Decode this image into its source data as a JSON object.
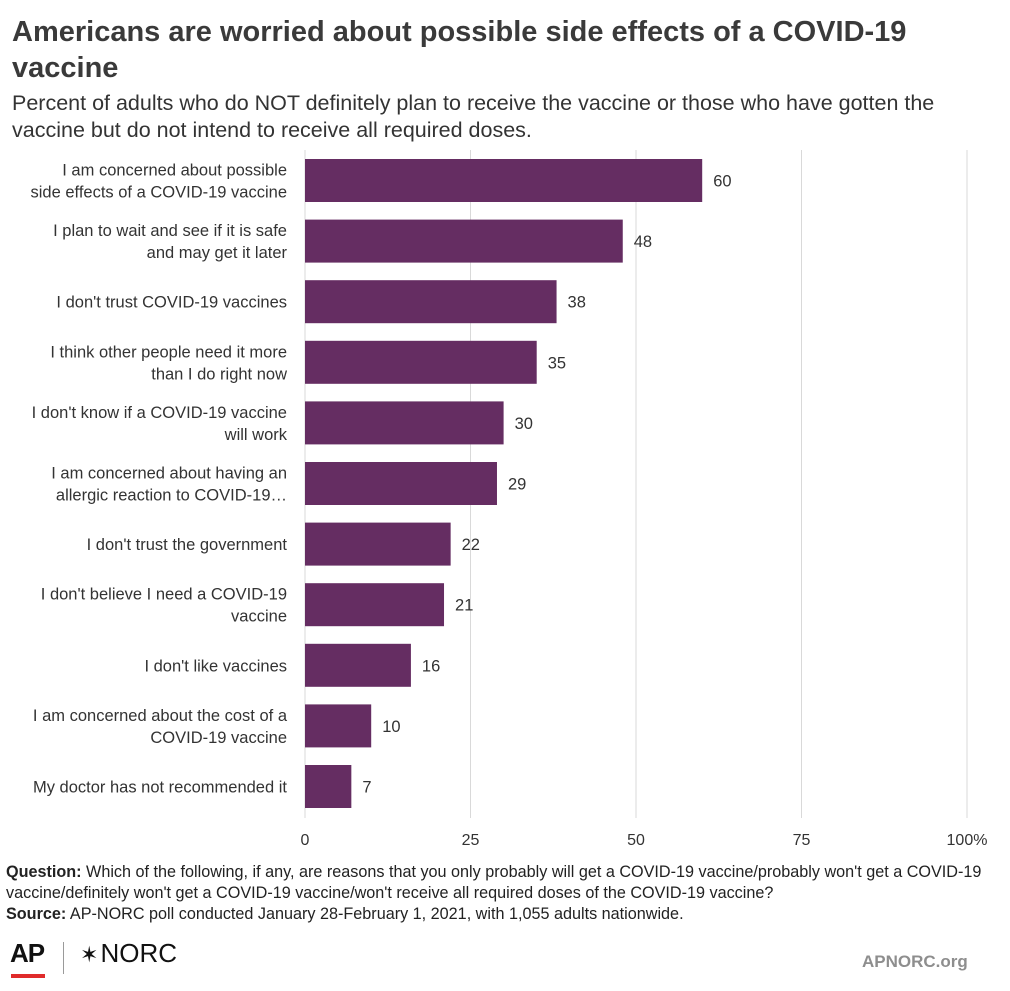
{
  "title": "Americans are worried about possible side effects of a COVID-19 vaccine",
  "subtitle": "Percent of adults who do NOT definitely plan to receive the vaccine or those who have gotten the vaccine but do not intend to receive all required doses.",
  "colors": {
    "bar": "#652d62",
    "grid": "#d9d9d9",
    "text": "#333333",
    "ap_red": "#e02b2b"
  },
  "chart_data": {
    "type": "bar",
    "orientation": "horizontal",
    "categories": [
      [
        "I am concerned about possible",
        "side effects of a COVID-19 vaccine"
      ],
      [
        "I plan to wait and see if it is safe",
        "and may get it later"
      ],
      [
        "I don't trust COVID-19 vaccines"
      ],
      [
        "I think other people need it more",
        "than I do right now"
      ],
      [
        "I don't know if a COVID-19 vaccine",
        "will work"
      ],
      [
        "I am concerned about having an",
        "allergic reaction to COVID-19…"
      ],
      [
        "I don't trust the government"
      ],
      [
        "I don't believe I need a COVID-19",
        "vaccine"
      ],
      [
        "I don't like vaccines"
      ],
      [
        "I am concerned about the cost of a",
        "COVID-19 vaccine"
      ],
      [
        "My doctor has not recommended it"
      ]
    ],
    "values": [
      60,
      48,
      38,
      35,
      30,
      29,
      22,
      21,
      16,
      10,
      7
    ],
    "data_labels": [
      "60",
      "48",
      "38",
      "35",
      "30",
      "29",
      "22",
      "21",
      "16",
      "10",
      "7"
    ],
    "xlim": [
      0,
      100
    ],
    "x_ticks": [
      0,
      25,
      50,
      75,
      100
    ],
    "x_tick_labels": [
      "0",
      "25",
      "50",
      "75",
      "100%"
    ],
    "grid": true
  },
  "footnote": {
    "question_label": "Question:",
    "question_text": "Which of the following, if any, are reasons that you only probably will get a COVID-19 vaccine/probably won't get a COVID-19 vaccine/definitely won't get a COVID-19 vaccine/won't receive all required doses of the COVID-19 vaccine?",
    "source_label": "Source:",
    "source_text": "AP-NORC poll conducted January 28-February 1, 2021, with 1,055 adults nationwide."
  },
  "logos": {
    "ap": "AP",
    "norc": "NORC",
    "norc_icon": "star-icon"
  },
  "site": "APNORC.org"
}
